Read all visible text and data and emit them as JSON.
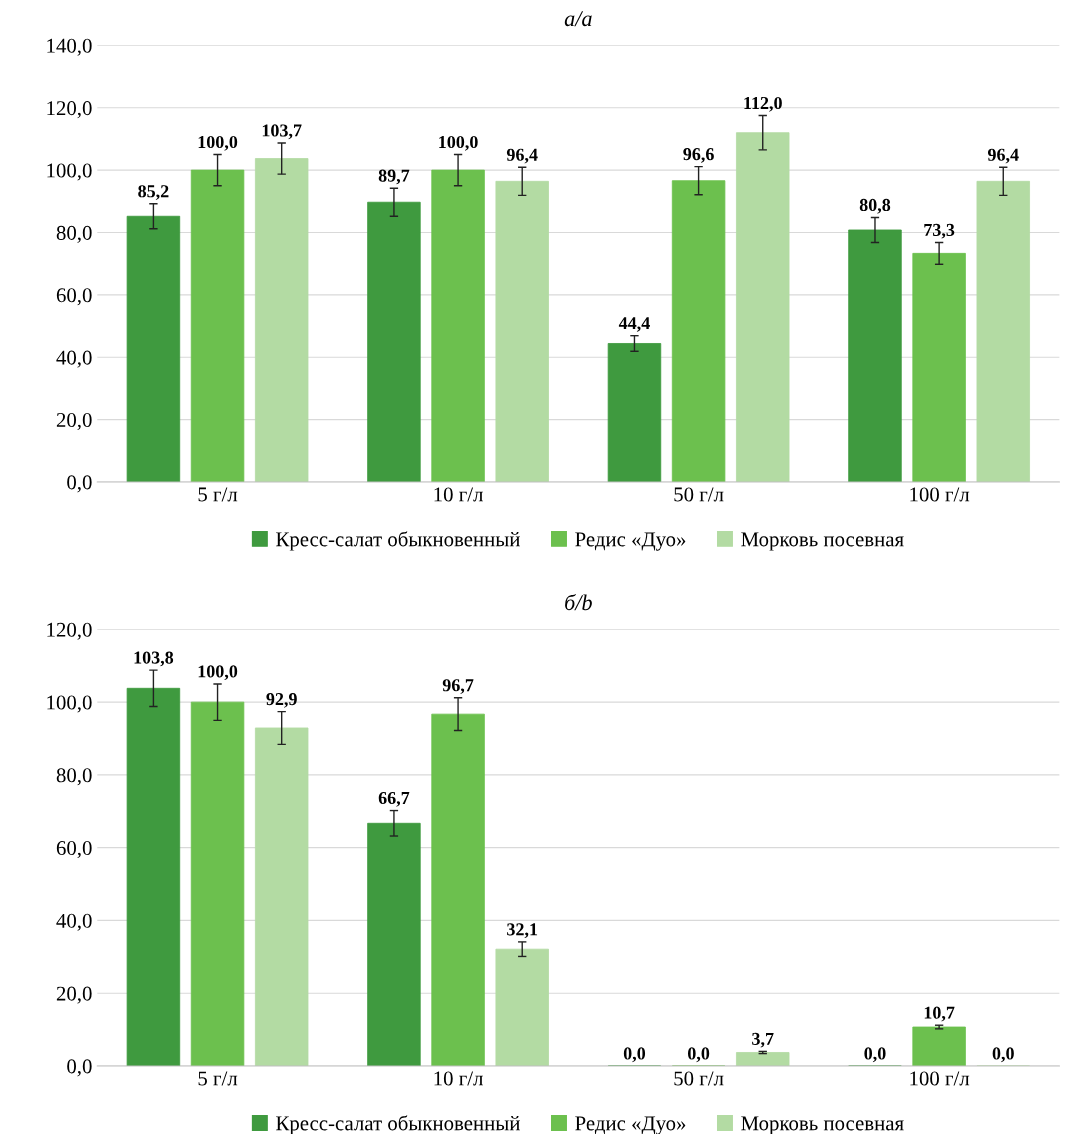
{
  "chart_data": [
    {
      "type": "bar",
      "title": "а/a",
      "categories": [
        "5 г/л",
        "10 г/л",
        "50 г/л",
        "100 г/л"
      ],
      "ylim": [
        0,
        140
      ],
      "yticks": [
        {
          "value": 0,
          "label": "0,0"
        },
        {
          "value": 20,
          "label": "20,0"
        },
        {
          "value": 40,
          "label": "40,0"
        },
        {
          "value": 60,
          "label": "60,0"
        },
        {
          "value": 80,
          "label": "80,0"
        },
        {
          "value": 100,
          "label": "100,0"
        },
        {
          "value": 120,
          "label": "120,0"
        },
        {
          "value": 140,
          "label": "140,0"
        }
      ],
      "grid": "y",
      "legend": "bottom",
      "series": [
        {
          "name": "Кресс-салат обыкновенный",
          "color": "#3f9a3f",
          "values": [
            85.2,
            89.7,
            44.4,
            80.8
          ],
          "errors": [
            4,
            4.5,
            2.5,
            4
          ],
          "value_labels": [
            "85,2",
            "89,7",
            "44,4",
            "80,8"
          ]
        },
        {
          "name": "Редис «Дуо»",
          "color": "#6cc04e",
          "values": [
            100.0,
            100.0,
            96.6,
            73.3
          ],
          "errors": [
            5,
            5,
            4.5,
            3.5
          ],
          "value_labels": [
            "100,0",
            "100,0",
            "96,6",
            "73,3"
          ]
        },
        {
          "name": "Морковь посевная",
          "color": "#b3dba3",
          "values": [
            103.7,
            96.4,
            112.0,
            96.4
          ],
          "errors": [
            5,
            4.5,
            5.5,
            4.5
          ],
          "value_labels": [
            "103,7",
            "96,4",
            "112,0",
            "96,4"
          ]
        }
      ]
    },
    {
      "type": "bar",
      "title": "б/b",
      "categories": [
        "5 г/л",
        "10 г/л",
        "50 г/л",
        "100 г/л"
      ],
      "ylim": [
        0,
        120
      ],
      "yticks": [
        {
          "value": 0,
          "label": "0,0"
        },
        {
          "value": 20,
          "label": "20,0"
        },
        {
          "value": 40,
          "label": "40,0"
        },
        {
          "value": 60,
          "label": "60,0"
        },
        {
          "value": 80,
          "label": "80,0"
        },
        {
          "value": 100,
          "label": "100,0"
        },
        {
          "value": 120,
          "label": "120,0"
        }
      ],
      "grid": "y",
      "legend": "bottom",
      "series": [
        {
          "name": "Кресс-салат обыкновенный",
          "color": "#3f9a3f",
          "values": [
            103.8,
            66.7,
            0.0,
            0.0
          ],
          "errors": [
            5,
            3.5,
            null,
            null
          ],
          "value_labels": [
            "103,8",
            "66,7",
            "0,0",
            "0,0"
          ]
        },
        {
          "name": "Редис «Дуо»",
          "color": "#6cc04e",
          "values": [
            100.0,
            96.7,
            0.0,
            10.7
          ],
          "errors": [
            5,
            4.5,
            null,
            0.5
          ],
          "value_labels": [
            "100,0",
            "96,7",
            "0,0",
            "10,7"
          ]
        },
        {
          "name": "Морковь посевная",
          "color": "#b3dba3",
          "values": [
            92.9,
            32.1,
            3.7,
            0.0
          ],
          "errors": [
            4.5,
            2,
            0.3,
            null
          ],
          "value_labels": [
            "92,9",
            "32,1",
            "3,7",
            "0,0"
          ]
        }
      ]
    }
  ]
}
